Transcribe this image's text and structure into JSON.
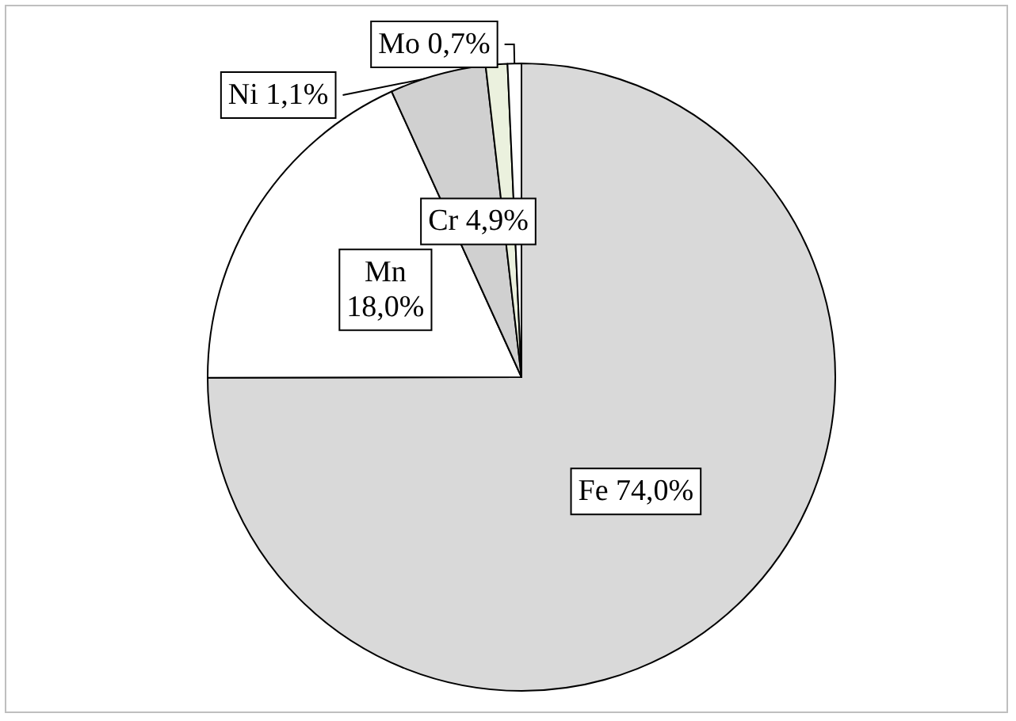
{
  "chart_data": {
    "type": "pie",
    "categories": [
      "Fe",
      "Mn",
      "Cr",
      "Ni",
      "Mo"
    ],
    "values": [
      74.0,
      18.0,
      4.9,
      1.1,
      0.7
    ],
    "value_labels": [
      "74,0%",
      "18,0%",
      "4,9%",
      "1,1%",
      "0,7%"
    ],
    "colors": [
      "#d9d9d9",
      "#ffffff",
      "#d0d0d0",
      "#ebf1de",
      "#ffffff"
    ],
    "legend": false
  }
}
